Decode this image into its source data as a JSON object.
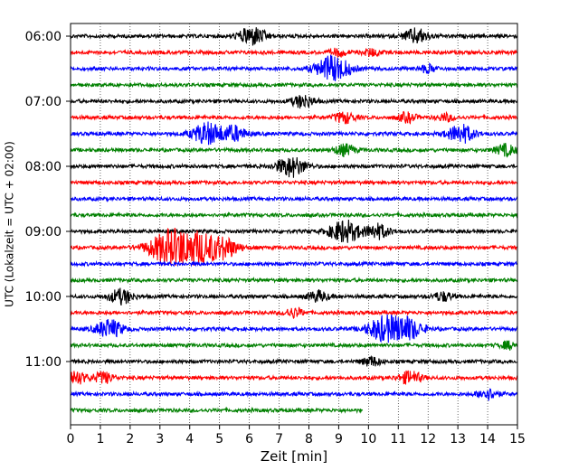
{
  "chart_data": {
    "type": "line",
    "subtype": "helicorder-seismogram",
    "title": "",
    "xlabel": "Zeit  [min]",
    "ylabel": "UTC (Lokalzeit = UTC + 02:00)",
    "xlim": [
      0,
      15
    ],
    "x_ticks": [
      "0",
      "1",
      "2",
      "3",
      "4",
      "5",
      "6",
      "7",
      "8",
      "9",
      "10",
      "11",
      "12",
      "13",
      "14",
      "15"
    ],
    "y_ticks": [
      "06:00",
      "07:00",
      "08:00",
      "09:00",
      "10:00",
      "11:00"
    ],
    "grid": "vertical dotted at each minute",
    "colors": [
      "#000000",
      "#ff0000",
      "#0000ff",
      "#008000"
    ],
    "rows": [
      {
        "start": "06:00",
        "color": "#000000",
        "events": [
          [
            6.1,
            10
          ],
          [
            11.6,
            8
          ]
        ]
      },
      {
        "start": "06:15",
        "color": "#ff0000",
        "events": [
          [
            9.0,
            4
          ],
          [
            10.1,
            4
          ]
        ]
      },
      {
        "start": "06:30",
        "color": "#0000ff",
        "events": [
          [
            8.8,
            14
          ],
          [
            12.0,
            4
          ]
        ]
      },
      {
        "start": "06:45",
        "color": "#008000",
        "events": []
      },
      {
        "start": "07:00",
        "color": "#000000",
        "events": [
          [
            7.8,
            7
          ]
        ]
      },
      {
        "start": "07:15",
        "color": "#ff0000",
        "events": [
          [
            9.2,
            6
          ],
          [
            11.3,
            5
          ],
          [
            12.6,
            4
          ]
        ]
      },
      {
        "start": "07:30",
        "color": "#0000ff",
        "events": [
          [
            4.6,
            12
          ],
          [
            5.5,
            8
          ],
          [
            13.1,
            10
          ]
        ]
      },
      {
        "start": "07:45",
        "color": "#008000",
        "events": [
          [
            9.2,
            6
          ],
          [
            14.6,
            6
          ]
        ]
      },
      {
        "start": "08:00",
        "color": "#000000",
        "events": [
          [
            7.4,
            11
          ]
        ]
      },
      {
        "start": "08:15",
        "color": "#ff0000",
        "events": []
      },
      {
        "start": "08:30",
        "color": "#0000ff",
        "events": []
      },
      {
        "start": "08:45",
        "color": "#008000",
        "events": []
      },
      {
        "start": "09:00",
        "color": "#000000",
        "events": [
          [
            9.2,
            12
          ],
          [
            10.3,
            8
          ]
        ]
      },
      {
        "start": "09:15",
        "color": "#ff0000",
        "events": [
          [
            3.4,
            20
          ],
          [
            4.4,
            14
          ],
          [
            5.2,
            10
          ]
        ]
      },
      {
        "start": "09:30",
        "color": "#0000ff",
        "events": []
      },
      {
        "start": "09:45",
        "color": "#008000",
        "events": []
      },
      {
        "start": "10:00",
        "color": "#000000",
        "events": [
          [
            1.7,
            8
          ],
          [
            8.3,
            6
          ],
          [
            12.5,
            5
          ]
        ]
      },
      {
        "start": "10:15",
        "color": "#ff0000",
        "events": [
          [
            7.5,
            5
          ]
        ]
      },
      {
        "start": "10:30",
        "color": "#0000ff",
        "events": [
          [
            1.3,
            10
          ],
          [
            10.5,
            13
          ],
          [
            11.3,
            12
          ]
        ]
      },
      {
        "start": "10:45",
        "color": "#008000",
        "events": [
          [
            14.7,
            4
          ]
        ]
      },
      {
        "start": "11:00",
        "color": "#000000",
        "events": [
          [
            10.1,
            5
          ]
        ]
      },
      {
        "start": "11:15",
        "color": "#ff0000",
        "events": [
          [
            0.1,
            8
          ],
          [
            1.1,
            6
          ],
          [
            11.4,
            7
          ]
        ]
      },
      {
        "start": "11:30",
        "color": "#0000ff",
        "events": [
          [
            14.0,
            6
          ]
        ]
      },
      {
        "start": "11:45",
        "color": "#008000",
        "end_minute": 9.8,
        "events": []
      }
    ]
  }
}
